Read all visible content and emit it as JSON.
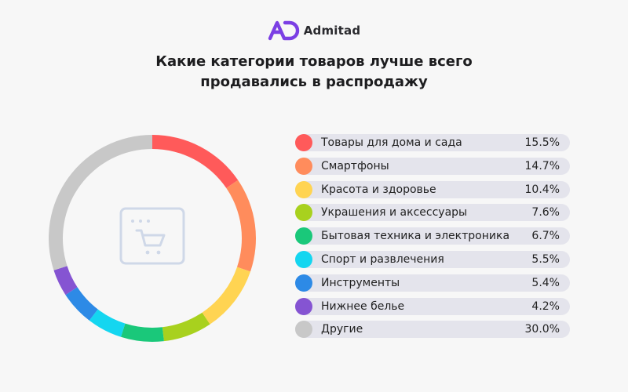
{
  "brand": {
    "name": "Admitad",
    "logo_color": "#7b3fe4"
  },
  "title_lines": [
    "Какие категории товаров лучше всего",
    "продавались в распродажу"
  ],
  "center_icon": "shopping-cart-icon",
  "chart_data": {
    "type": "pie",
    "variant": "donut",
    "title": "Какие категории товаров лучше всего продавались в распродажу",
    "unit": "%",
    "legend_placement": "right",
    "categories": [
      "Товары для дома и сада",
      "Смартфоны",
      "Красота и здоровье",
      "Украшения и аксессуары",
      "Бытовая техника и электроника",
      "Спорт и развлечения",
      "Инструменты",
      "Нижнее белье",
      "Другие"
    ],
    "values": [
      15.5,
      14.7,
      10.4,
      7.6,
      6.7,
      5.5,
      5.4,
      4.2,
      30.0
    ],
    "value_labels": [
      "15.5%",
      "14.7%",
      "10.4%",
      "7.6%",
      "6.7%",
      "5.5%",
      "5.4%",
      "4.2%",
      "30.0%"
    ],
    "colors": [
      "#ff5a5a",
      "#ff8c5c",
      "#ffd452",
      "#a8d11e",
      "#1ac87a",
      "#14d6f0",
      "#2d8ae6",
      "#8554d2",
      "#c8c8c8"
    ]
  }
}
